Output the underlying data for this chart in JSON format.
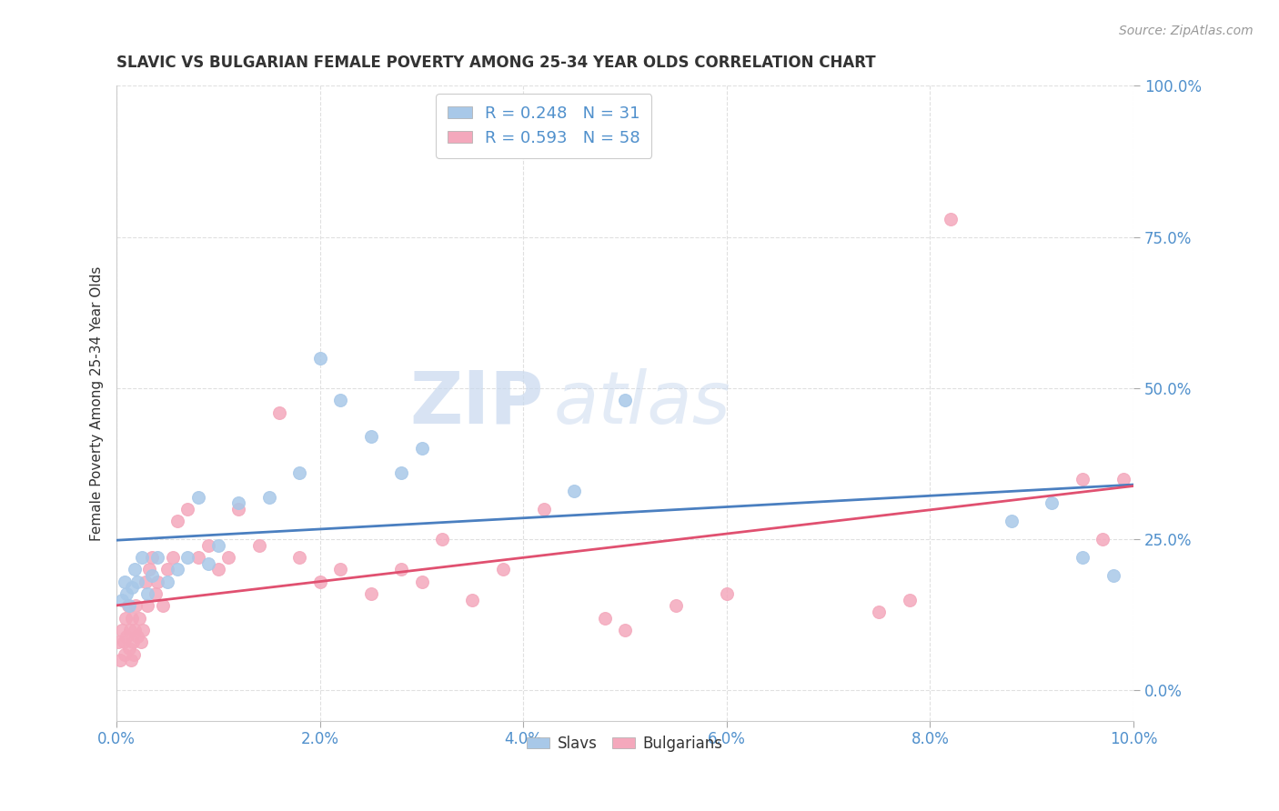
{
  "title": "SLAVIC VS BULGARIAN FEMALE POVERTY AMONG 25-34 YEAR OLDS CORRELATION CHART",
  "source": "Source: ZipAtlas.com",
  "xlabel": "",
  "ylabel": "Female Poverty Among 25-34 Year Olds",
  "xlim": [
    0.0,
    10.0
  ],
  "ylim": [
    -5.0,
    100.0
  ],
  "xticks": [
    0.0,
    2.0,
    4.0,
    6.0,
    8.0,
    10.0
  ],
  "xtick_labels": [
    "0.0%",
    "2.0%",
    "4.0%",
    "6.0%",
    "8.0%",
    "10.0%"
  ],
  "yticks": [
    0.0,
    25.0,
    50.0,
    75.0,
    100.0
  ],
  "ytick_labels": [
    "0.0%",
    "25.0%",
    "50.0%",
    "75.0%",
    "100.0%"
  ],
  "slavs_color": "#a8c8e8",
  "bulgarians_color": "#f4a8bc",
  "trend_slavs_color": "#4a7fc0",
  "trend_bulgarians_color": "#e05070",
  "slavs_R": 0.248,
  "slavs_N": 31,
  "bulgarians_R": 0.593,
  "bulgarians_N": 58,
  "watermark_zip": "ZIP",
  "watermark_atlas": "atlas",
  "background_color": "#ffffff",
  "grid_color": "#e0e0e0",
  "slavs_x": [
    0.05,
    0.08,
    0.1,
    0.12,
    0.15,
    0.18,
    0.2,
    0.25,
    0.3,
    0.35,
    0.4,
    0.5,
    0.6,
    0.7,
    0.8,
    0.9,
    1.0,
    1.2,
    1.5,
    1.8,
    2.0,
    2.2,
    2.5,
    2.8,
    3.0,
    4.5,
    5.0,
    8.8,
    9.2,
    9.5,
    9.8
  ],
  "slavs_y": [
    15,
    18,
    16,
    14,
    17,
    20,
    18,
    22,
    16,
    19,
    22,
    18,
    20,
    22,
    32,
    21,
    24,
    31,
    32,
    36,
    55,
    48,
    42,
    36,
    40,
    33,
    48,
    28,
    31,
    22,
    19
  ],
  "bulgarians_x": [
    0.02,
    0.03,
    0.05,
    0.07,
    0.08,
    0.09,
    0.1,
    0.11,
    0.12,
    0.13,
    0.14,
    0.15,
    0.16,
    0.17,
    0.18,
    0.19,
    0.2,
    0.22,
    0.24,
    0.26,
    0.28,
    0.3,
    0.32,
    0.35,
    0.38,
    0.4,
    0.45,
    0.5,
    0.55,
    0.6,
    0.7,
    0.8,
    0.9,
    1.0,
    1.1,
    1.2,
    1.4,
    1.6,
    1.8,
    2.0,
    2.2,
    2.5,
    2.8,
    3.0,
    3.2,
    3.5,
    3.8,
    4.2,
    4.8,
    5.0,
    5.5,
    6.0,
    7.5,
    7.8,
    8.2,
    9.5,
    9.7,
    9.9
  ],
  "bulgarians_y": [
    8,
    5,
    10,
    8,
    6,
    12,
    9,
    14,
    7,
    10,
    5,
    12,
    8,
    6,
    10,
    14,
    9,
    12,
    8,
    10,
    18,
    14,
    20,
    22,
    16,
    18,
    14,
    20,
    22,
    28,
    30,
    22,
    24,
    20,
    22,
    30,
    24,
    46,
    22,
    18,
    20,
    16,
    20,
    18,
    25,
    15,
    20,
    30,
    12,
    10,
    14,
    16,
    13,
    15,
    78,
    35,
    25,
    35
  ],
  "title_color": "#333333",
  "axis_label_color": "#333333",
  "tick_color": "#5090cc",
  "legend_label_color": "#5090cc",
  "source_color": "#999999"
}
